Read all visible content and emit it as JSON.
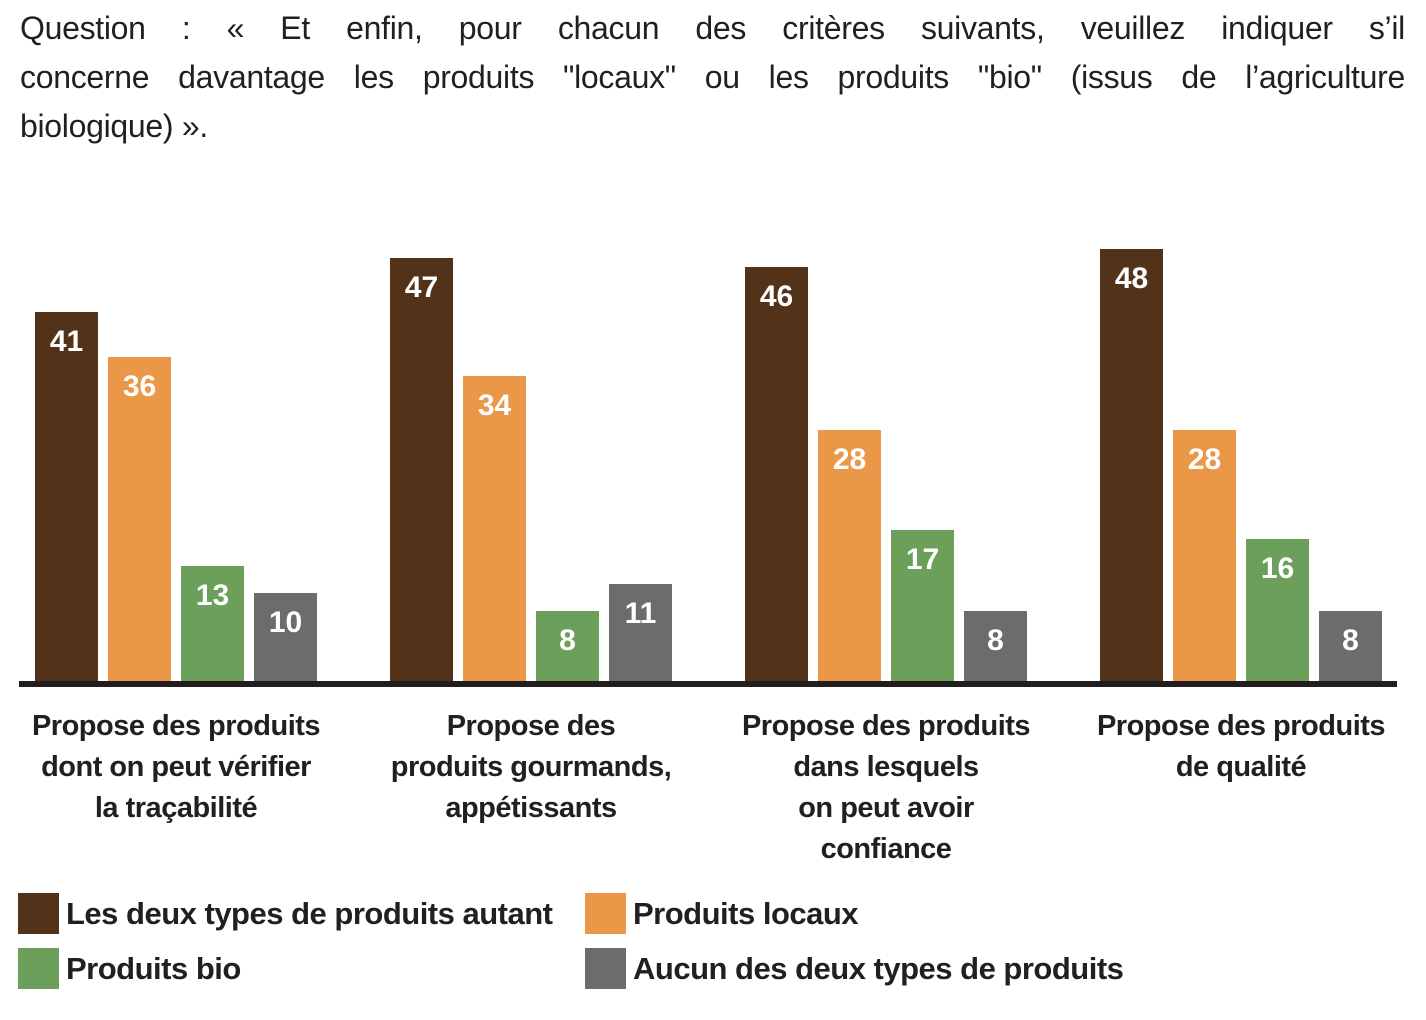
{
  "question": {
    "lines": [
      "Question : « Et enfin, pour chacun des critères suivants, veuillez indiquer s’il",
      "concerne davantage les produits \"locaux\" ou les produits \"bio\" (issus de l’agriculture",
      "biologique) »."
    ]
  },
  "chart_data": {
    "type": "bar",
    "unit": "percent",
    "title": "",
    "xlabel": "",
    "ylabel": "",
    "ylim": [
      0,
      50
    ],
    "grid": false,
    "value_labels": true,
    "legend_position": "bottom-two-columns",
    "categories": [
      "Propose des produits\ndont on peut vérifier\nla traçabilité",
      "Propose des\nproduits gourmands,\nappétissants",
      "Propose des produits\ndans lesquels\non peut avoir\nconfiance",
      "Propose des produits\nde qualité"
    ],
    "series": [
      {
        "name": "Les deux types de produits autant",
        "color": "#53321A",
        "values": [
          41,
          47,
          46,
          48
        ]
      },
      {
        "name": "Produits locaux",
        "color": "#EB9748",
        "values": [
          36,
          34,
          28,
          28
        ]
      },
      {
        "name": "Produits bio",
        "color": "#6CA05A",
        "values": [
          13,
          8,
          17,
          16
        ]
      },
      {
        "name": "Aucun des deux types de produits",
        "color": "#6C6C6C",
        "values": [
          10,
          11,
          8,
          8
        ]
      }
    ],
    "colors": {
      "axis": "#221E1F",
      "value_label_text": "#FFFFFF",
      "text": "#231F20"
    }
  }
}
